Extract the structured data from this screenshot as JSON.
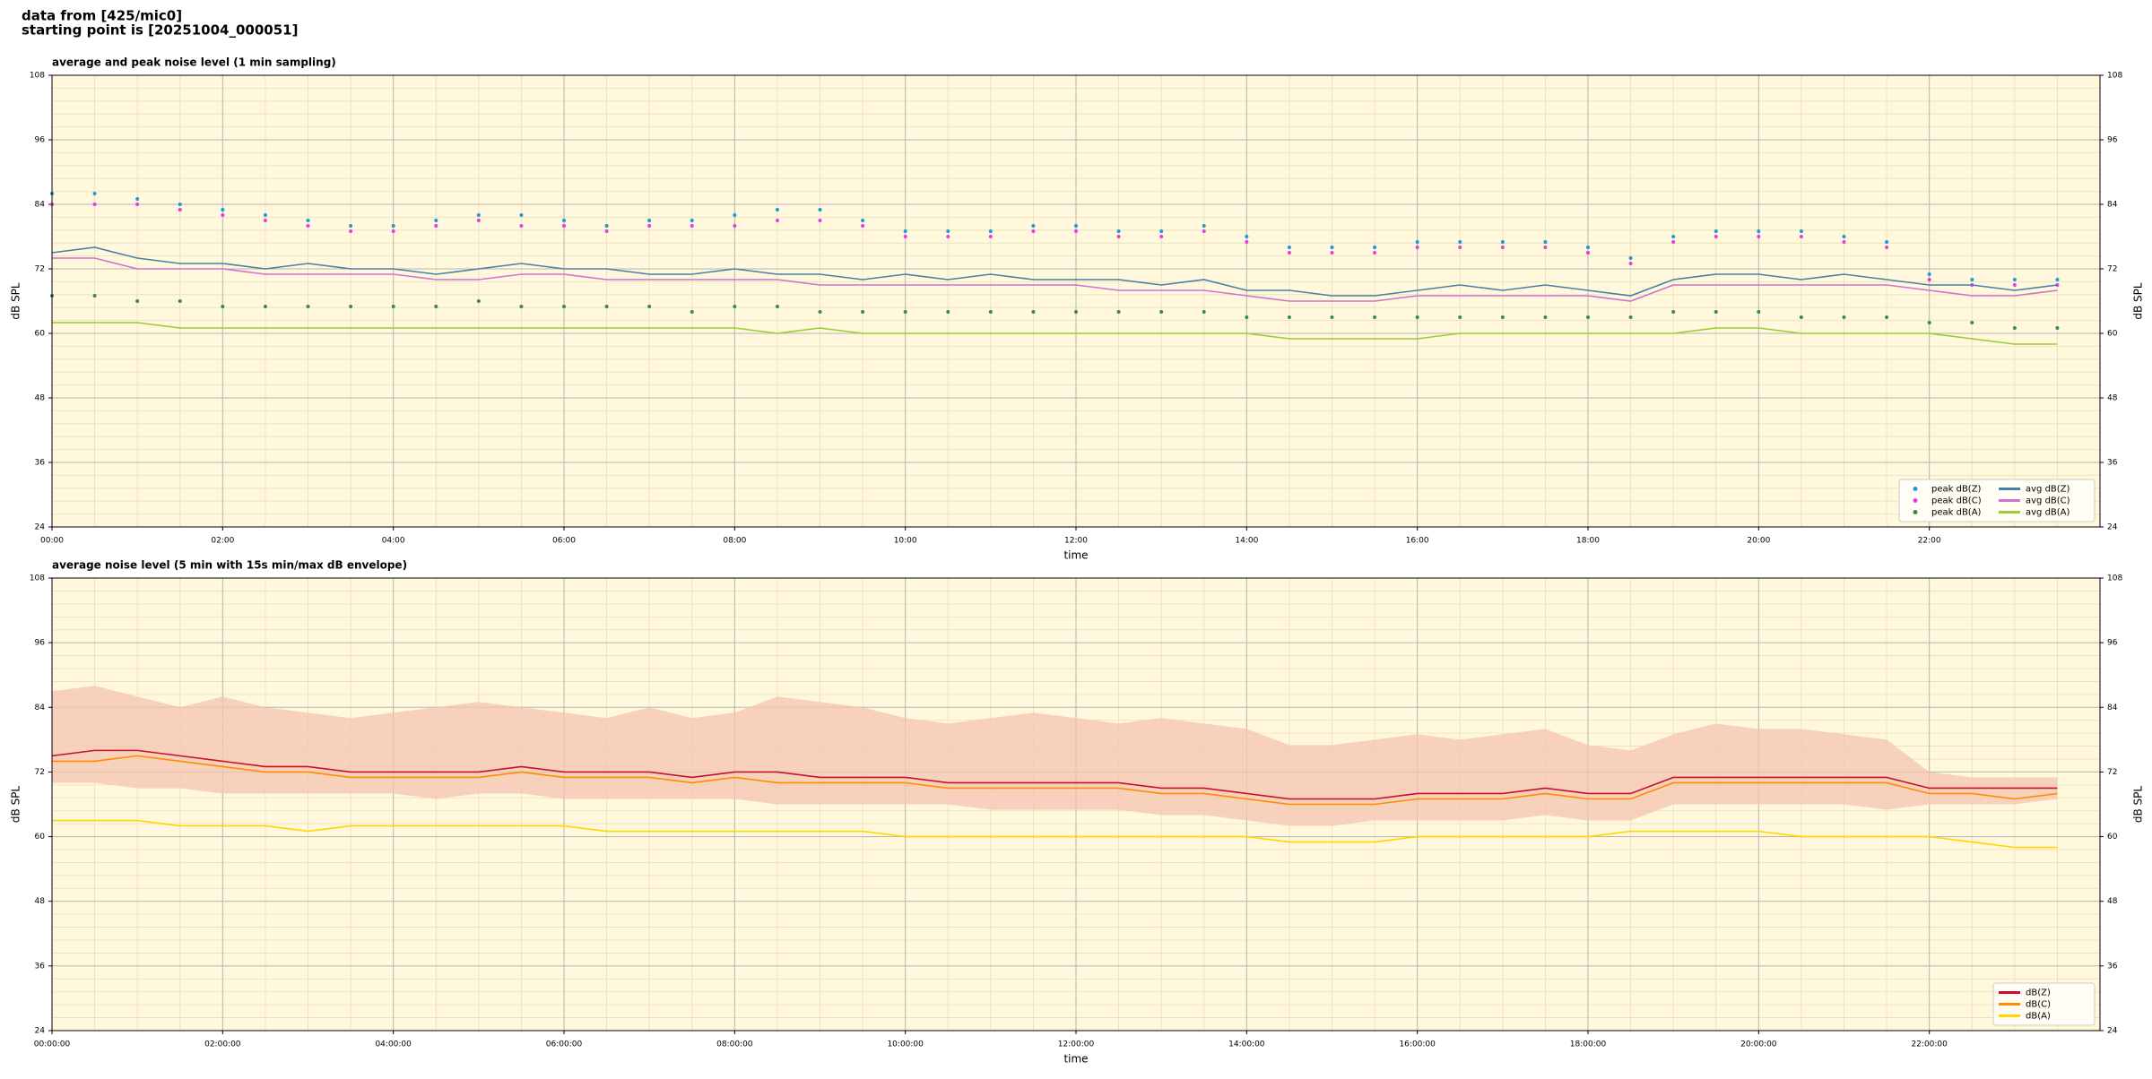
{
  "header": {
    "lines": [
      "data from [425/mic0]",
      "starting point is [20251004_000051]"
    ]
  },
  "chart_data": [
    {
      "type": "line",
      "title": "average and peak noise level (1 min sampling)",
      "x_label": "time",
      "y_label": "dB SPL",
      "x": [
        0,
        0.5,
        1,
        1.5,
        2,
        2.5,
        3,
        3.5,
        4,
        4.5,
        5,
        5.5,
        6,
        6.5,
        7,
        7.5,
        8,
        8.5,
        9,
        9.5,
        10,
        10.5,
        11,
        11.5,
        12,
        12.5,
        13,
        13.5,
        14,
        14.5,
        15,
        15.5,
        16,
        16.5,
        17,
        17.5,
        18,
        18.5,
        19,
        19.5,
        20,
        20.5,
        21,
        21.5,
        22,
        22.5,
        23,
        23.5
      ],
      "xlim": [
        0,
        24
      ],
      "xticks": [
        {
          "value": 0,
          "label": "00:00"
        },
        {
          "value": 2,
          "label": "02:00"
        },
        {
          "value": 4,
          "label": "04:00"
        },
        {
          "value": 6,
          "label": "06:00"
        },
        {
          "value": 8,
          "label": "08:00"
        },
        {
          "value": 10,
          "label": "10:00"
        },
        {
          "value": 12,
          "label": "12:00"
        },
        {
          "value": 14,
          "label": "14:00"
        },
        {
          "value": 16,
          "label": "16:00"
        },
        {
          "value": 18,
          "label": "18:00"
        },
        {
          "value": 20,
          "label": "20:00"
        },
        {
          "value": 22,
          "label": "22:00"
        }
      ],
      "ylim": [
        24,
        108
      ],
      "yticks": [
        24,
        36,
        48,
        60,
        72,
        84,
        96,
        108
      ],
      "grid": true,
      "minor_grid": true,
      "legend": "lower right",
      "legend_columns": 2,
      "series": [
        {
          "name": "peak dB(Z)",
          "color": "#1f9ad6",
          "style": "marker",
          "values": [
            86,
            86,
            85,
            84,
            83,
            82,
            81,
            80,
            80,
            81,
            82,
            82,
            81,
            80,
            81,
            81,
            82,
            83,
            83,
            81,
            79,
            79,
            79,
            80,
            80,
            79,
            79,
            80,
            78,
            76,
            76,
            76,
            77,
            77,
            77,
            77,
            76,
            74,
            78,
            79,
            79,
            79,
            78,
            77,
            71,
            70,
            70,
            70
          ]
        },
        {
          "name": "peak dB(C)",
          "color": "#e040e0",
          "style": "marker",
          "values": [
            84,
            84,
            84,
            83,
            82,
            81,
            80,
            79,
            79,
            80,
            81,
            80,
            80,
            79,
            80,
            80,
            80,
            81,
            81,
            80,
            78,
            78,
            78,
            79,
            79,
            78,
            78,
            79,
            77,
            75,
            75,
            75,
            76,
            76,
            76,
            76,
            75,
            73,
            77,
            78,
            78,
            78,
            77,
            76,
            70,
            69,
            69,
            69
          ]
        },
        {
          "name": "peak dB(A)",
          "color": "#3a8a4a",
          "style": "marker",
          "values": [
            67,
            67,
            66,
            66,
            65,
            65,
            65,
            65,
            65,
            65,
            66,
            65,
            65,
            65,
            65,
            64,
            65,
            65,
            64,
            64,
            64,
            64,
            64,
            64,
            64,
            64,
            64,
            64,
            63,
            63,
            63,
            63,
            63,
            63,
            63,
            63,
            63,
            63,
            64,
            64,
            64,
            63,
            63,
            63,
            62,
            62,
            61,
            61
          ]
        },
        {
          "name": "avg dB(Z)",
          "color": "#4a7fa8",
          "style": "line",
          "values": [
            75,
            76,
            74,
            73,
            73,
            72,
            73,
            72,
            72,
            71,
            72,
            73,
            72,
            72,
            71,
            71,
            72,
            71,
            71,
            70,
            71,
            70,
            71,
            70,
            70,
            70,
            69,
            70,
            68,
            68,
            67,
            67,
            68,
            69,
            68,
            69,
            68,
            67,
            70,
            71,
            71,
            70,
            71,
            70,
            69,
            69,
            68,
            69
          ]
        },
        {
          "name": "avg dB(C)",
          "color": "#d070d0",
          "style": "line",
          "values": [
            74,
            74,
            72,
            72,
            72,
            71,
            71,
            71,
            71,
            70,
            70,
            71,
            71,
            70,
            70,
            70,
            70,
            70,
            69,
            69,
            69,
            69,
            69,
            69,
            69,
            68,
            68,
            68,
            67,
            66,
            66,
            66,
            67,
            67,
            67,
            67,
            67,
            66,
            69,
            69,
            69,
            69,
            69,
            69,
            68,
            67,
            67,
            68
          ]
        },
        {
          "name": "avg dB(A)",
          "color": "#9acd32",
          "style": "line",
          "values": [
            62,
            62,
            62,
            61,
            61,
            61,
            61,
            61,
            61,
            61,
            61,
            61,
            61,
            61,
            61,
            61,
            61,
            60,
            61,
            60,
            60,
            60,
            60,
            60,
            60,
            60,
            60,
            60,
            60,
            59,
            59,
            59,
            59,
            60,
            60,
            60,
            60,
            60,
            60,
            61,
            61,
            60,
            60,
            60,
            60,
            59,
            58,
            58
          ]
        }
      ]
    },
    {
      "type": "line",
      "title": "average noise level (5 min with 15s min/max dB envelope)",
      "x_label": "time",
      "y_label": "dB SPL",
      "x": [
        0,
        0.5,
        1,
        1.5,
        2,
        2.5,
        3,
        3.5,
        4,
        4.5,
        5,
        5.5,
        6,
        6.5,
        7,
        7.5,
        8,
        8.5,
        9,
        9.5,
        10,
        10.5,
        11,
        11.5,
        12,
        12.5,
        13,
        13.5,
        14,
        14.5,
        15,
        15.5,
        16,
        16.5,
        17,
        17.5,
        18,
        18.5,
        19,
        19.5,
        20,
        20.5,
        21,
        21.5,
        22,
        22.5,
        23,
        23.5
      ],
      "xlim": [
        0,
        24
      ],
      "xticks": [
        {
          "value": 0,
          "label": "00:00:00"
        },
        {
          "value": 2,
          "label": "02:00:00"
        },
        {
          "value": 4,
          "label": "04:00:00"
        },
        {
          "value": 6,
          "label": "06:00:00"
        },
        {
          "value": 8,
          "label": "08:00:00"
        },
        {
          "value": 10,
          "label": "10:00:00"
        },
        {
          "value": 12,
          "label": "12:00:00"
        },
        {
          "value": 14,
          "label": "14:00:00"
        },
        {
          "value": 16,
          "label": "16:00:00"
        },
        {
          "value": 18,
          "label": "18:00:00"
        },
        {
          "value": 20,
          "label": "20:00:00"
        },
        {
          "value": 22,
          "label": "22:00:00"
        }
      ],
      "ylim": [
        24,
        108
      ],
      "yticks": [
        24,
        36,
        48,
        60,
        72,
        84,
        96,
        108
      ],
      "grid": true,
      "minor_grid": true,
      "legend": "lower right",
      "legend_columns": 1,
      "envelope": {
        "color": "#f4c4b0",
        "upper": [
          87,
          88,
          86,
          84,
          86,
          84,
          83,
          82,
          83,
          84,
          85,
          84,
          83,
          82,
          84,
          82,
          83,
          86,
          85,
          84,
          82,
          81,
          82,
          83,
          82,
          81,
          82,
          81,
          80,
          77,
          77,
          78,
          79,
          78,
          79,
          80,
          77,
          76,
          79,
          81,
          80,
          80,
          79,
          78,
          72,
          71,
          71,
          71
        ],
        "lower": [
          70,
          70,
          69,
          69,
          68,
          68,
          68,
          68,
          68,
          67,
          68,
          68,
          67,
          67,
          67,
          67,
          67,
          66,
          66,
          66,
          66,
          66,
          65,
          65,
          65,
          65,
          64,
          64,
          63,
          62,
          62,
          63,
          63,
          63,
          63,
          64,
          63,
          63,
          66,
          66,
          66,
          66,
          66,
          65,
          66,
          66,
          66,
          67
        ]
      },
      "series": [
        {
          "name": "dB(Z)",
          "color": "#c8102e",
          "style": "line",
          "values": [
            75,
            76,
            76,
            75,
            74,
            73,
            73,
            72,
            72,
            72,
            72,
            73,
            72,
            72,
            72,
            71,
            72,
            72,
            71,
            71,
            71,
            70,
            70,
            70,
            70,
            70,
            69,
            69,
            68,
            67,
            67,
            67,
            68,
            68,
            68,
            69,
            68,
            68,
            71,
            71,
            71,
            71,
            71,
            71,
            69,
            69,
            69,
            69
          ]
        },
        {
          "name": "dB(C)",
          "color": "#ff8c00",
          "style": "line",
          "values": [
            74,
            74,
            75,
            74,
            73,
            72,
            72,
            71,
            71,
            71,
            71,
            72,
            71,
            71,
            71,
            70,
            71,
            70,
            70,
            70,
            70,
            69,
            69,
            69,
            69,
            69,
            68,
            68,
            67,
            66,
            66,
            66,
            67,
            67,
            67,
            68,
            67,
            67,
            70,
            70,
            70,
            70,
            70,
            70,
            68,
            68,
            67,
            68
          ]
        },
        {
          "name": "dB(A)",
          "color": "#ffd700",
          "style": "line",
          "values": [
            63,
            63,
            63,
            62,
            62,
            62,
            61,
            62,
            62,
            62,
            62,
            62,
            62,
            61,
            61,
            61,
            61,
            61,
            61,
            61,
            60,
            60,
            60,
            60,
            60,
            60,
            60,
            60,
            60,
            59,
            59,
            59,
            60,
            60,
            60,
            60,
            60,
            61,
            61,
            61,
            61,
            60,
            60,
            60,
            60,
            59,
            58,
            58
          ]
        }
      ]
    }
  ]
}
